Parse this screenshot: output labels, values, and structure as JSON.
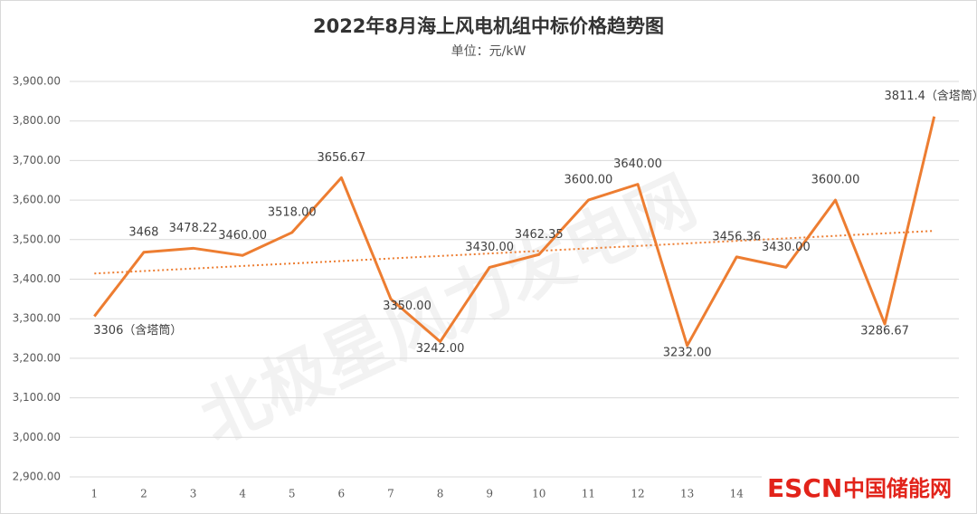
{
  "chart_data": {
    "type": "line",
    "title": "2022年8月海上风电机组中标价格趋势图",
    "subtitle": "单位：元/kW",
    "categories": [
      "1",
      "2",
      "3",
      "4",
      "5",
      "6",
      "7",
      "8",
      "9",
      "10",
      "11",
      "12",
      "13",
      "14",
      null,
      null,
      null,
      null
    ],
    "series": [
      {
        "name": "中标价格",
        "color": "#ed7d31",
        "values": [
          3306,
          3468,
          3478.22,
          3460,
          3518,
          3656.67,
          3350,
          3242,
          3430,
          3462.35,
          3600,
          3640,
          3232,
          3456.36,
          3430,
          3600,
          3286.67,
          3811.4
        ],
        "value_labels": [
          "3306（含塔筒）",
          "3468",
          "3478.22",
          "3460.00",
          "3518.00",
          "3656.67",
          "3350.00",
          "3242.00",
          "3430.00",
          "3462.35",
          "3600.00",
          "3640.00",
          "3232.00",
          "3456.36",
          "3430.00",
          "3600.00",
          "3286.67",
          "3811.4（含塔筒）"
        ]
      }
    ],
    "trendline": true,
    "ylim": [
      2900,
      3900
    ],
    "yticks": [
      {
        "value": 2900,
        "label": "2,900.00"
      },
      {
        "value": 3000,
        "label": "3,000.00"
      },
      {
        "value": 3100,
        "label": "3,100.00"
      },
      {
        "value": 3200,
        "label": "3,200.00"
      },
      {
        "value": 3300,
        "label": "3,300.00"
      },
      {
        "value": 3400,
        "label": "3,400.00"
      },
      {
        "value": 3500,
        "label": "3,500.00"
      },
      {
        "value": 3600,
        "label": "3,600.00"
      },
      {
        "value": 3700,
        "label": "3,700.00"
      },
      {
        "value": 3800,
        "label": "3,800.00"
      },
      {
        "value": 3900,
        "label": "3,900.00"
      }
    ],
    "grid": true,
    "watermark": "北极星风力发电网",
    "logo": {
      "en": "ESCN",
      "cn": "中国储能网"
    }
  }
}
